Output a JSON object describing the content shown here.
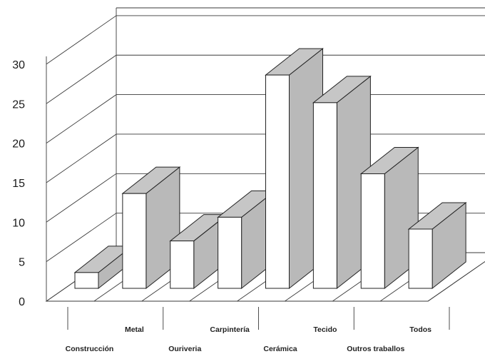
{
  "chart_data": {
    "type": "bar",
    "title": "",
    "xlabel": "",
    "ylabel": "",
    "ylim": [
      0,
      30
    ],
    "yticks": [
      0,
      5,
      10,
      15,
      20,
      25,
      30
    ],
    "grid": true,
    "categories": [
      "Construcción",
      "Metal",
      "Ouriveria",
      "Carpintería",
      "Cerámica",
      "Tecido",
      "Outros traballos",
      "Todos"
    ],
    "values": [
      2,
      12,
      6,
      9,
      27,
      23.5,
      14.5,
      7.5
    ],
    "colors": {
      "front": "#ffffff",
      "top": "#c6c6c6",
      "side": "#b9b9b9",
      "edge": "#222222"
    }
  }
}
